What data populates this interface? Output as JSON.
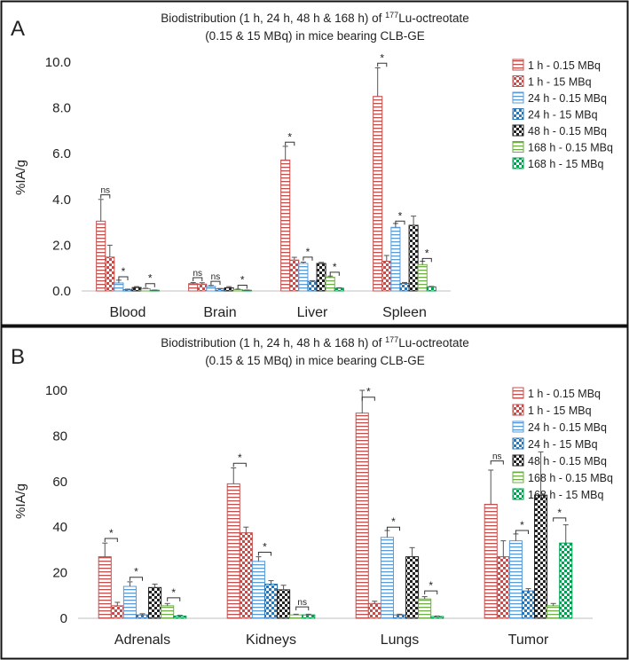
{
  "chart_data": [
    {
      "panel_label": "A",
      "type": "bar",
      "title_prefix": "Biodistribution (1 h, 24 h, 48 h & 168 h) of ",
      "title_isotope_mass": "177",
      "title_suffix": "Lu-octreotate",
      "subtitle": "(0.15 & 15 MBq) in mice bearing CLB-GE",
      "ylabel": "%IA/g",
      "xlabel": "",
      "ylim": [
        0,
        10
      ],
      "yticks": [
        0,
        2,
        4,
        6,
        8,
        10
      ],
      "ytick_labels": [
        "0.0",
        "2.0",
        "4.0",
        "6.0",
        "8.0",
        "10.0"
      ],
      "grid": false,
      "legend_position": "top-right",
      "categories": [
        "Blood",
        "Brain",
        "Liver",
        "Spleen"
      ],
      "series": [
        {
          "name": "1 h - 0.15 MBq",
          "color": "#c0504d",
          "pattern": "hlines",
          "values": [
            3.05,
            0.32,
            5.72,
            8.5
          ],
          "errors": [
            0.95,
            0.05,
            0.6,
            1.25
          ]
        },
        {
          "name": "1 h - 15 MBq",
          "color": "#c0504d",
          "pattern": "checker",
          "values": [
            1.48,
            0.3,
            1.35,
            1.3
          ],
          "errors": [
            0.52,
            0.06,
            0.12,
            0.25
          ]
        },
        {
          "name": "24 h - 0.15 MBq",
          "color": "#5b9bd5",
          "pattern": "hlines",
          "values": [
            0.35,
            0.2,
            1.2,
            2.78
          ],
          "errors": [
            0.12,
            0.04,
            0.06,
            0.17
          ]
        },
        {
          "name": "24 h - 15 MBq",
          "color": "#2e75b6",
          "pattern": "checker",
          "values": [
            0.06,
            0.09,
            0.42,
            0.33
          ],
          "errors": [
            0.02,
            0.02,
            0.03,
            0.04
          ]
        },
        {
          "name": "48 h - 0.15 MBq",
          "color": "#222222",
          "pattern": "checker",
          "values": [
            0.15,
            0.14,
            1.2,
            2.87
          ],
          "errors": [
            0.04,
            0.05,
            0.05,
            0.4
          ]
        },
        {
          "name": "168 h - 0.15 MBq",
          "color": "#70ad47",
          "pattern": "hlines",
          "values": [
            0.1,
            0.06,
            0.6,
            1.15
          ],
          "errors": [
            0.02,
            0.02,
            0.05,
            0.15
          ]
        },
        {
          "name": "168 h - 15 MBq",
          "color": "#00a050",
          "pattern": "checker",
          "values": [
            0.03,
            0.03,
            0.12,
            0.18
          ],
          "errors": [
            0.01,
            0.01,
            0.02,
            0.02
          ]
        }
      ],
      "annotations": [
        {
          "category": "Blood",
          "from": 0,
          "to": 1,
          "text": "ns",
          "y": 4.2
        },
        {
          "category": "Blood",
          "from": 2,
          "to": 3,
          "text": "*",
          "y": 0.62
        },
        {
          "category": "Blood",
          "from": 5,
          "to": 6,
          "text": "*",
          "y": 0.32
        },
        {
          "category": "Brain",
          "from": 0,
          "to": 1,
          "text": "ns",
          "y": 0.58
        },
        {
          "category": "Brain",
          "from": 2,
          "to": 3,
          "text": "ns",
          "y": 0.42
        },
        {
          "category": "Brain",
          "from": 5,
          "to": 6,
          "text": "*",
          "y": 0.25
        },
        {
          "category": "Liver",
          "from": 0,
          "to": 1,
          "text": "*",
          "y": 6.5
        },
        {
          "category": "Liver",
          "from": 2,
          "to": 3,
          "text": "*",
          "y": 1.48
        },
        {
          "category": "Liver",
          "from": 5,
          "to": 6,
          "text": "*",
          "y": 0.82
        },
        {
          "category": "Spleen",
          "from": 0,
          "to": 1,
          "text": "*",
          "y": 9.95
        },
        {
          "category": "Spleen",
          "from": 2,
          "to": 3,
          "text": "*",
          "y": 3.05
        },
        {
          "category": "Spleen",
          "from": 5,
          "to": 6,
          "text": "*",
          "y": 1.42
        }
      ]
    },
    {
      "panel_label": "B",
      "type": "bar",
      "title_prefix": "Biodistribution (1 h, 24 h, 48 h & 168 h) of ",
      "title_isotope_mass": "177",
      "title_suffix": "Lu-octreotate",
      "subtitle": "(0.15 & 15 MBq) in mice bearing CLB-GE",
      "ylabel": "%IA/g",
      "xlabel": "",
      "ylim": [
        0,
        100
      ],
      "yticks": [
        0,
        20,
        40,
        60,
        80,
        100
      ],
      "ytick_labels": [
        "0",
        "20",
        "40",
        "60",
        "80",
        "100"
      ],
      "grid": false,
      "legend_position": "top-right",
      "categories": [
        "Adrenals",
        "Kidneys",
        "Lungs",
        "Tumor"
      ],
      "series": [
        {
          "name": "1 h - 0.15 MBq",
          "color": "#c0504d",
          "pattern": "hlines",
          "values": [
            27,
            59,
            90,
            50
          ],
          "errors": [
            6,
            7,
            10,
            15
          ]
        },
        {
          "name": "1 h - 15 MBq",
          "color": "#c0504d",
          "pattern": "checker",
          "values": [
            5.5,
            37.5,
            6.5,
            27
          ],
          "errors": [
            1.5,
            2.5,
            1,
            7
          ]
        },
        {
          "name": "24 h - 0.15 MBq",
          "color": "#5b9bd5",
          "pattern": "hlines",
          "values": [
            14,
            25,
            35.5,
            34
          ],
          "errors": [
            2,
            2,
            3,
            3
          ]
        },
        {
          "name": "24 h - 15 MBq",
          "color": "#2e75b6",
          "pattern": "checker",
          "values": [
            1.5,
            15,
            1.5,
            12
          ],
          "errors": [
            0.5,
            1.5,
            0.3,
            1
          ]
        },
        {
          "name": "48 h - 0.15 MBq",
          "color": "#222222",
          "pattern": "checker",
          "values": [
            13.5,
            12.5,
            27,
            54
          ],
          "errors": [
            1.5,
            2,
            4,
            19
          ]
        },
        {
          "name": "168 h - 0.15 MBq",
          "color": "#70ad47",
          "pattern": "hlines",
          "values": [
            5.5,
            1.5,
            8.5,
            5.5
          ],
          "errors": [
            1,
            0.3,
            1,
            1
          ]
        },
        {
          "name": "168 h - 15 MBq",
          "color": "#00a050",
          "pattern": "checker",
          "values": [
            1,
            1.5,
            0.8,
            33
          ],
          "errors": [
            0.3,
            0.3,
            0.2,
            8
          ]
        }
      ],
      "annotations": [
        {
          "category": "Adrenals",
          "from": 0,
          "to": 1,
          "text": "*",
          "y": 35
        },
        {
          "category": "Adrenals",
          "from": 2,
          "to": 3,
          "text": "*",
          "y": 18
        },
        {
          "category": "Adrenals",
          "from": 5,
          "to": 6,
          "text": "*",
          "y": 9
        },
        {
          "category": "Kidneys",
          "from": 0,
          "to": 1,
          "text": "*",
          "y": 68
        },
        {
          "category": "Kidneys",
          "from": 2,
          "to": 3,
          "text": "*",
          "y": 29
        },
        {
          "category": "Kidneys",
          "from": 5,
          "to": 6,
          "text": "ns",
          "y": 5
        },
        {
          "category": "Lungs",
          "from": 0,
          "to": 1,
          "text": "*",
          "y": 97
        },
        {
          "category": "Lungs",
          "from": 2,
          "to": 3,
          "text": "*",
          "y": 40
        },
        {
          "category": "Lungs",
          "from": 5,
          "to": 6,
          "text": "*",
          "y": 12
        },
        {
          "category": "Tumor",
          "from": 0,
          "to": 1,
          "text": "ns",
          "y": 69
        },
        {
          "category": "Tumor",
          "from": 2,
          "to": 3,
          "text": "*",
          "y": 38.5
        },
        {
          "category": "Tumor",
          "from": 5,
          "to": 6,
          "text": "*",
          "y": 44
        }
      ]
    }
  ]
}
